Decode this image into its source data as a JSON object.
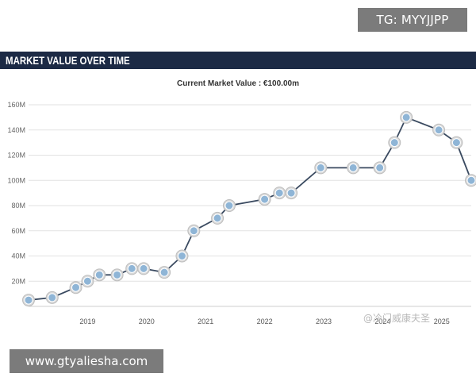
{
  "watermark_top": "TG: MYYJJPP",
  "header": {
    "title": "MARKET VALUE OVER TIME"
  },
  "subtitle": "Current Market Value : €100.00m",
  "watermark_bottom": "www.gtyaliesha.com",
  "watermark_weibo": "@冷门威康夫圣",
  "colors": {
    "header_bg": "#1c2a45",
    "line": "#3a4a60",
    "grid": "#e2e2e2",
    "marker": "#8fb5d6",
    "marker_border": "#ffffff"
  },
  "chart_data": {
    "type": "line",
    "title": "MARKET VALUE OVER TIME",
    "subtitle": "Current Market Value : €100.00m",
    "xlabel": "",
    "ylabel": "",
    "unit": "€ millions",
    "ylim": [
      0,
      160
    ],
    "xlim": [
      2018.0,
      2025.5
    ],
    "y_ticks": [
      20,
      40,
      60,
      80,
      100,
      120,
      140,
      160
    ],
    "y_tick_labels": [
      "20M",
      "40M",
      "60M",
      "80M",
      "100M",
      "120M",
      "140M",
      "160M"
    ],
    "x_ticks": [
      2019,
      2020,
      2021,
      2022,
      2023,
      2024,
      2025
    ],
    "x_tick_labels": [
      "2019",
      "2020",
      "2021",
      "2022",
      "2023",
      "2024",
      "2025"
    ],
    "grid": true,
    "series": [
      {
        "name": "Market Value",
        "x": [
          2018.0,
          2018.4,
          2018.8,
          2019.0,
          2019.2,
          2019.5,
          2019.75,
          2019.95,
          2020.3,
          2020.6,
          2020.8,
          2021.2,
          2021.4,
          2022.0,
          2022.25,
          2022.45,
          2022.95,
          2023.5,
          2023.95,
          2024.2,
          2024.4,
          2024.95,
          2025.25,
          2025.5
        ],
        "values": [
          5,
          7,
          15,
          20,
          25,
          25,
          30,
          30,
          27,
          40,
          60,
          70,
          80,
          85,
          90,
          90,
          110,
          110,
          110,
          130,
          150,
          140,
          130,
          100
        ]
      }
    ]
  }
}
